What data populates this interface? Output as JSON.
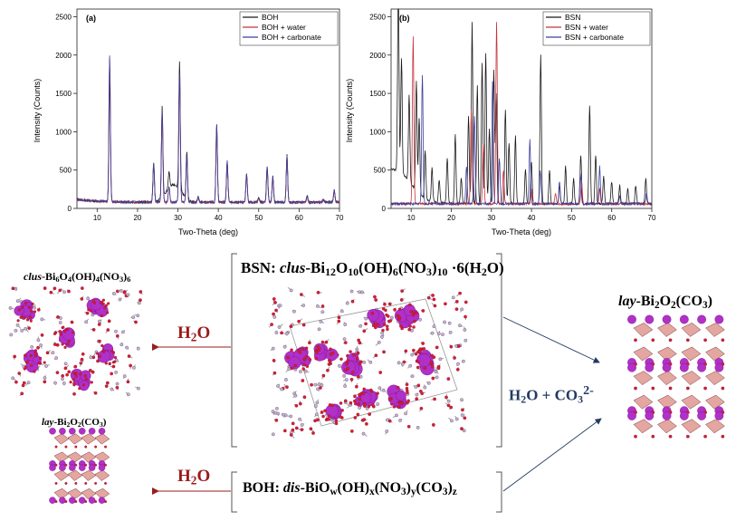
{
  "colors": {
    "series_black": "#1a1a1a",
    "series_red": "#c8323c",
    "series_blue": "#3b3f9c",
    "arrow_red": "#9b1b1b",
    "arrow_navy": "#233a63",
    "bi_atom": "#b030c8",
    "o_atom": "#dd1f1f",
    "bond_gray": "#9aa0a8"
  },
  "chart_data": [
    {
      "type": "line",
      "panel_label": "(a)",
      "xlabel": "Two-Theta (deg)",
      "ylabel": "Intensity (Counts)",
      "xlim": [
        5,
        70
      ],
      "ylim": [
        0,
        2600
      ],
      "xticks": [
        "10",
        "20",
        "30",
        "40",
        "50",
        "60",
        "70"
      ],
      "yticks": [
        "0",
        "500",
        "1000",
        "1500",
        "2000",
        "2500"
      ],
      "legend_position": "top-right",
      "baseline": 80,
      "series": [
        {
          "name": "BOH",
          "color": "#1a1a1a",
          "peaks": [
            [
              13.1,
              1650
            ],
            [
              24.0,
              600
            ],
            [
              26.1,
              1270
            ],
            [
              27.8,
              300
            ],
            [
              30.4,
              1760
            ],
            [
              32.2,
              700
            ],
            [
              35.0,
              150
            ],
            [
              39.6,
              1100
            ],
            [
              42.2,
              620
            ],
            [
              47.0,
              450
            ],
            [
              50.0,
              140
            ],
            [
              52.1,
              550
            ],
            [
              53.5,
              420
            ],
            [
              57.0,
              700
            ],
            [
              62.0,
              160
            ],
            [
              66.0,
              120
            ],
            [
              68.7,
              240
            ]
          ],
          "humps": [
            [
              29.0,
              230,
              1.8
            ]
          ]
        },
        {
          "name": "BOH + water",
          "color": "#c8323c",
          "peaks": [
            [
              13.1,
              1950
            ],
            [
              24.0,
              560
            ],
            [
              26.1,
              1250
            ],
            [
              27.8,
              280
            ],
            [
              30.4,
              1750
            ],
            [
              32.2,
              690
            ],
            [
              35.0,
              140
            ],
            [
              39.6,
              1080
            ],
            [
              42.2,
              610
            ],
            [
              47.0,
              430
            ],
            [
              50.0,
              130
            ],
            [
              52.1,
              530
            ],
            [
              53.5,
              400
            ],
            [
              57.0,
              680
            ],
            [
              62.0,
              150
            ],
            [
              66.0,
              110
            ],
            [
              68.7,
              230
            ]
          ],
          "humps": []
        },
        {
          "name": "BOH + carbonate",
          "color": "#3b3f9c",
          "peaks": [
            [
              13.1,
              1990
            ],
            [
              24.0,
              570
            ],
            [
              26.1,
              1280
            ],
            [
              27.8,
              290
            ],
            [
              30.4,
              1770
            ],
            [
              32.2,
              700
            ],
            [
              35.0,
              150
            ],
            [
              39.6,
              1100
            ],
            [
              42.2,
              620
            ],
            [
              47.0,
              440
            ],
            [
              50.0,
              140
            ],
            [
              52.1,
              540
            ],
            [
              53.5,
              410
            ],
            [
              57.0,
              690
            ],
            [
              62.0,
              160
            ],
            [
              66.0,
              120
            ],
            [
              68.7,
              240
            ]
          ],
          "humps": []
        }
      ]
    },
    {
      "type": "line",
      "panel_label": "(b)",
      "xlabel": "Two-Theta (deg)",
      "ylabel": "Intensity (Counts)",
      "xlim": [
        5,
        70
      ],
      "ylim": [
        0,
        2600
      ],
      "xticks": [
        "10",
        "20",
        "30",
        "40",
        "50",
        "60",
        "70"
      ],
      "yticks": [
        "0",
        "500",
        "1000",
        "1500",
        "2000",
        "2500"
      ],
      "legend_position": "top-right",
      "baseline": 60,
      "series": [
        {
          "name": "BSN",
          "color": "#1a1a1a",
          "peaks": [
            [
              6.8,
              2500
            ],
            [
              7.6,
              1550
            ],
            [
              9.5,
              1200
            ],
            [
              11.3,
              1500
            ],
            [
              12.0,
              1050
            ],
            [
              13.5,
              700
            ],
            [
              15.2,
              500
            ],
            [
              17.0,
              350
            ],
            [
              19.0,
              650
            ],
            [
              21.0,
              950
            ],
            [
              22.5,
              400
            ],
            [
              24.3,
              1200
            ],
            [
              25.2,
              2420
            ],
            [
              26.5,
              1600
            ],
            [
              27.7,
              1900
            ],
            [
              28.6,
              2020
            ],
            [
              29.5,
              1050
            ],
            [
              30.6,
              1800
            ],
            [
              31.2,
              1500
            ],
            [
              33.5,
              1300
            ],
            [
              34.4,
              850
            ],
            [
              36.0,
              950
            ],
            [
              38.5,
              500
            ],
            [
              40.0,
              600
            ],
            [
              42.3,
              2000
            ],
            [
              44.5,
              500
            ],
            [
              47.0,
              300
            ],
            [
              48.5,
              550
            ],
            [
              50.5,
              400
            ],
            [
              52.3,
              700
            ],
            [
              54.5,
              1350
            ],
            [
              56.0,
              700
            ],
            [
              58.0,
              420
            ],
            [
              60.0,
              350
            ],
            [
              62.0,
              300
            ],
            [
              64.0,
              250
            ],
            [
              66.0,
              300
            ],
            [
              68.5,
              380
            ]
          ],
          "humps": [
            [
              7.5,
              250,
              3.0
            ]
          ]
        },
        {
          "name": "BSN + water",
          "color": "#c8323c",
          "peaks": [
            [
              10.5,
              2250
            ],
            [
              25.0,
              1300
            ],
            [
              28.0,
              850
            ],
            [
              31.3,
              2430
            ],
            [
              33.0,
              500
            ],
            [
              40.0,
              250
            ],
            [
              46.0,
              200
            ],
            [
              52.5,
              350
            ],
            [
              57.0,
              250
            ]
          ],
          "humps": []
        },
        {
          "name": "BSN + carbonate",
          "color": "#3b3f9c",
          "peaks": [
            [
              12.8,
              1750
            ],
            [
              23.8,
              550
            ],
            [
              25.8,
              1200
            ],
            [
              30.3,
              1650
            ],
            [
              32.0,
              650
            ],
            [
              39.6,
              900
            ],
            [
              42.2,
              500
            ],
            [
              47.0,
              350
            ],
            [
              52.2,
              450
            ],
            [
              57.0,
              550
            ],
            [
              62.0,
              150
            ],
            [
              68.7,
              200
            ]
          ],
          "humps": []
        }
      ]
    }
  ],
  "structures": {
    "bsn_label_prefix": "BSN: ",
    "bsn_italic": "clus",
    "bsn_formula_tail": "-Bi12O10(OH)6(NO3)10·6(H2O)",
    "boh_label_prefix": "BOH: ",
    "boh_italic": "dis",
    "boh_formula_tail": "-BiOw(OH)x(NO3)y(CO3)z",
    "left_top_italic": "clus",
    "left_top_tail": "-Bi6O4(OH)4(NO3)6",
    "left_bottom_italic": "lay",
    "left_bottom_tail": "-Bi2O2(CO3)",
    "right_italic": "lay",
    "right_tail": "-Bi2O2(CO3)",
    "arrow_label_water_top": "H2O",
    "arrow_label_water_bottom": "H2O",
    "arrow_label_carbonate": "H2O + CO32-"
  }
}
